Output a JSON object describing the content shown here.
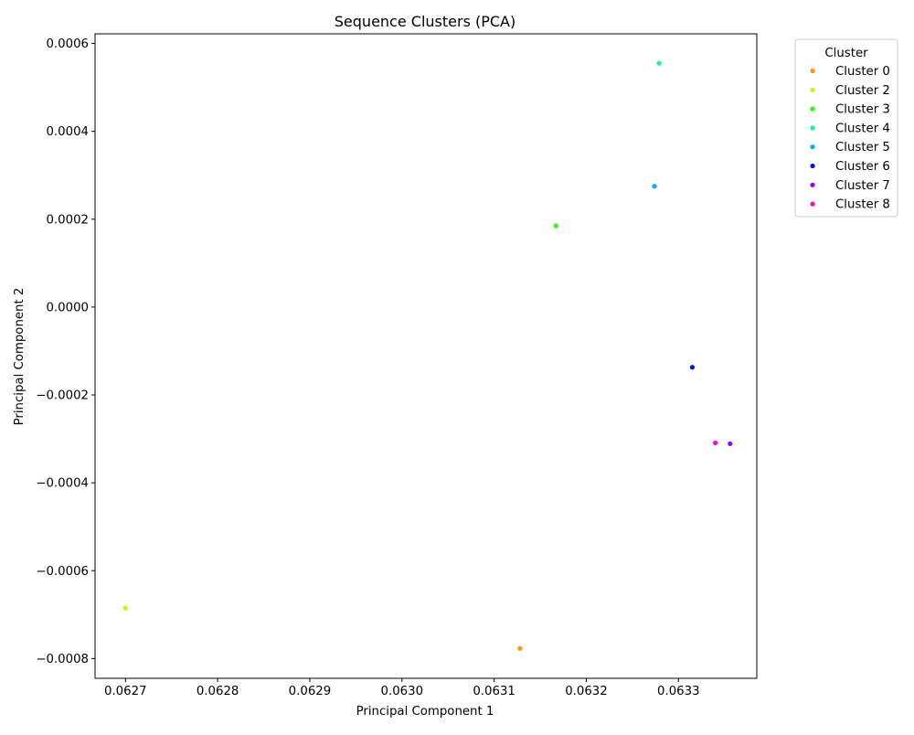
{
  "chart_data": {
    "type": "scatter",
    "title": "Sequence Clusters (PCA)",
    "xlabel": "Principal Component 1",
    "ylabel": "Principal Component 2",
    "xlim": [
      0.062667,
      0.063385
    ],
    "ylim": [
      -0.000845,
      0.000622
    ],
    "xticks": [
      0.0627,
      0.0628,
      0.0629,
      0.063,
      0.0631,
      0.0632,
      0.0633
    ],
    "xtick_labels": [
      "0.0627",
      "0.0628",
      "0.0629",
      "0.0630",
      "0.0631",
      "0.0632",
      "0.0633"
    ],
    "yticks": [
      -0.0008,
      -0.0006,
      -0.0004,
      -0.0002,
      0.0,
      0.0002,
      0.0004,
      0.0006
    ],
    "ytick_labels": [
      "−0.0008",
      "−0.0006",
      "−0.0004",
      "−0.0002",
      "0.0000",
      "0.0002",
      "0.0004",
      "0.0006"
    ],
    "grid": false,
    "legend": {
      "title": "Cluster",
      "placement": "outside-top-right"
    },
    "series": [
      {
        "name": "Cluster 0",
        "color": "#ff9900",
        "x": [
          0.063128
        ],
        "y": [
          -0.000777
        ]
      },
      {
        "name": "Cluster 2",
        "color": "#bbff00",
        "x": [
          0.0627
        ],
        "y": [
          -0.000685
        ]
      },
      {
        "name": "Cluster 3",
        "color": "#22ff00",
        "x": [
          0.063167
        ],
        "y": [
          0.000185
        ]
      },
      {
        "name": "Cluster 4",
        "color": "#00ff99",
        "x": [
          0.063279
        ],
        "y": [
          0.000555
        ]
      },
      {
        "name": "Cluster 5",
        "color": "#00aaff",
        "x": [
          0.063274
        ],
        "y": [
          0.000275
        ]
      },
      {
        "name": "Cluster 6",
        "color": "#0011ff",
        "x": [
          0.063315
        ],
        "y": [
          -0.000137
        ]
      },
      {
        "name": "Cluster 7",
        "color": "#9900ff",
        "x": [
          0.063356
        ],
        "y": [
          -0.000311
        ]
      },
      {
        "name": "Cluster 8",
        "color": "#ff00cc",
        "x": [
          0.06334
        ],
        "y": [
          -0.000309
        ]
      }
    ]
  }
}
